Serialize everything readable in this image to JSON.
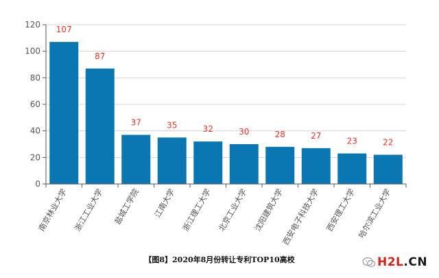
{
  "chart_data": {
    "type": "bar",
    "categories": [
      "南京林业大学",
      "浙江工业大学",
      "盐城工学院",
      "江南大学",
      "浙江理工大学",
      "北京工业大学",
      "沈阳建筑大学",
      "西安电子科技大学",
      "西安理工大学",
      "哈尔滨工业大学"
    ],
    "values": [
      107,
      87,
      37,
      35,
      32,
      30,
      28,
      27,
      23,
      22
    ],
    "ylim": [
      0,
      120
    ],
    "yticks": [
      0,
      20,
      40,
      60,
      80,
      100,
      120
    ],
    "grid": true,
    "legend": "none",
    "colors": {
      "bar": "#0a77b3",
      "data_label": "#e8312a",
      "grid": "#d4d4d4",
      "axis": "#555555",
      "tick_label": "#555555"
    }
  },
  "caption": "【图8】2020年8月份转让专利TOP10高校",
  "watermark": {
    "text_red": "H2L",
    "text_black": ".CN",
    "icon": "wechat-icon"
  }
}
